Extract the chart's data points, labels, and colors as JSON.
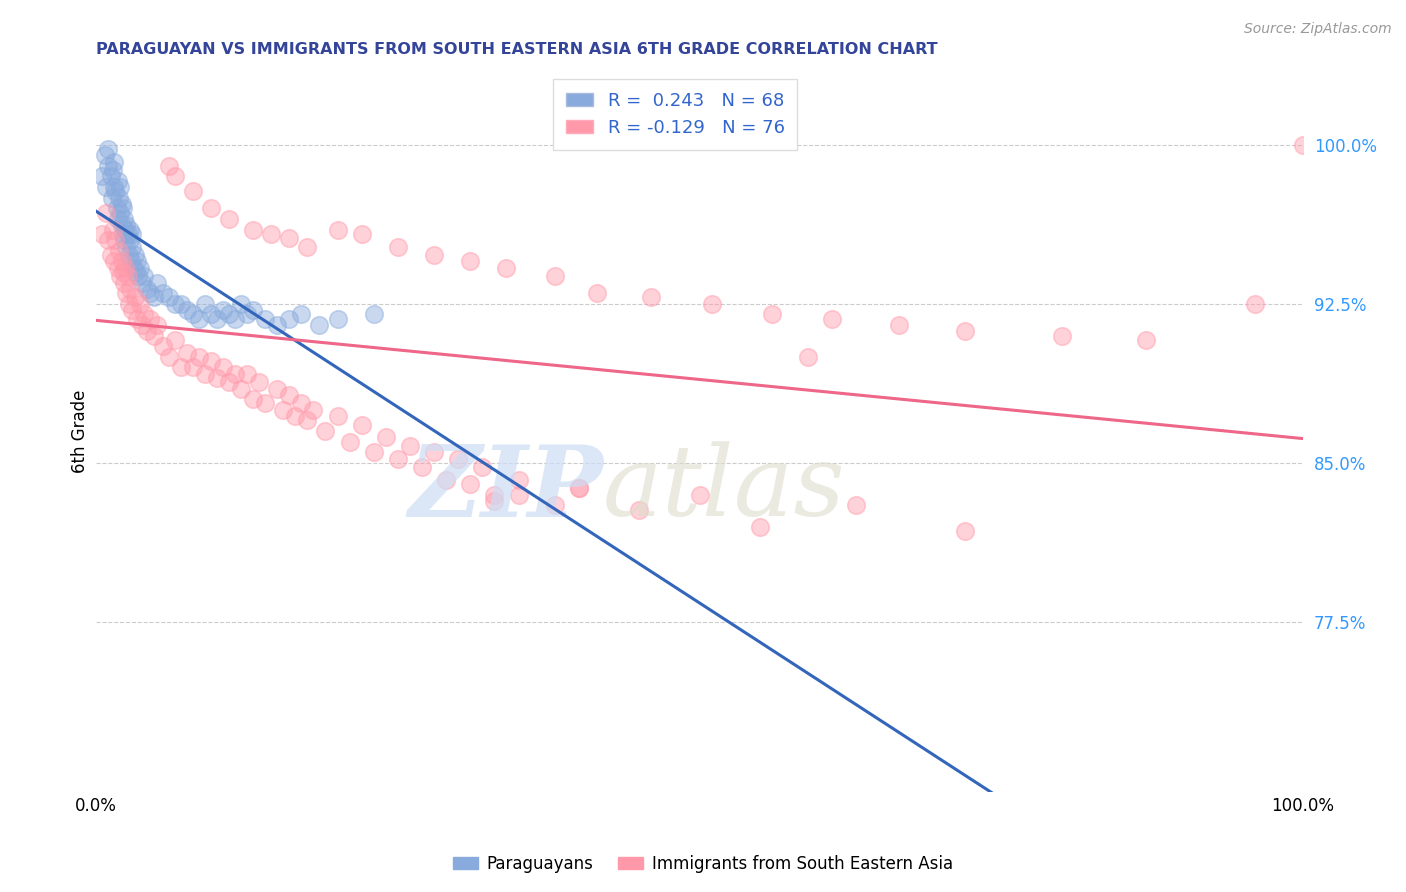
{
  "title": "PARAGUAYAN VS IMMIGRANTS FROM SOUTH EASTERN ASIA 6TH GRADE CORRELATION CHART",
  "source": "Source: ZipAtlas.com",
  "ylabel": "6th Grade",
  "xlim": [
    0.0,
    1.0
  ],
  "ylim": [
    0.695,
    1.035
  ],
  "yticks": [
    0.775,
    0.85,
    0.925,
    1.0
  ],
  "ytick_labels": [
    "77.5%",
    "85.0%",
    "92.5%",
    "100.0%"
  ],
  "blue_r": 0.243,
  "blue_n": 68,
  "pink_r": -0.129,
  "pink_n": 76,
  "legend_label_blue": "Paraguayans",
  "legend_label_pink": "Immigrants from South Eastern Asia",
  "blue_color": "#88AADD",
  "pink_color": "#FF99AA",
  "blue_line_color": "#3366BB",
  "pink_line_color": "#EE6688",
  "blue_points_x": [
    0.005,
    0.007,
    0.008,
    0.01,
    0.01,
    0.012,
    0.013,
    0.014,
    0.015,
    0.015,
    0.016,
    0.017,
    0.018,
    0.018,
    0.019,
    0.02,
    0.02,
    0.021,
    0.021,
    0.022,
    0.022,
    0.023,
    0.023,
    0.024,
    0.025,
    0.025,
    0.026,
    0.027,
    0.028,
    0.028,
    0.029,
    0.03,
    0.03,
    0.031,
    0.032,
    0.033,
    0.034,
    0.035,
    0.036,
    0.038,
    0.04,
    0.042,
    0.045,
    0.048,
    0.05,
    0.055,
    0.06,
    0.065,
    0.07,
    0.075,
    0.08,
    0.085,
    0.09,
    0.095,
    0.1,
    0.105,
    0.11,
    0.115,
    0.12,
    0.125,
    0.13,
    0.14,
    0.15,
    0.16,
    0.17,
    0.185,
    0.2,
    0.23
  ],
  "blue_points_y": [
    0.985,
    0.995,
    0.98,
    0.99,
    0.998,
    0.985,
    0.975,
    0.988,
    0.98,
    0.992,
    0.978,
    0.97,
    0.983,
    0.965,
    0.975,
    0.968,
    0.98,
    0.962,
    0.972,
    0.958,
    0.97,
    0.955,
    0.965,
    0.96,
    0.952,
    0.962,
    0.958,
    0.948,
    0.955,
    0.96,
    0.945,
    0.952,
    0.958,
    0.942,
    0.948,
    0.94,
    0.945,
    0.938,
    0.942,
    0.935,
    0.938,
    0.932,
    0.93,
    0.928,
    0.935,
    0.93,
    0.928,
    0.925,
    0.925,
    0.922,
    0.92,
    0.918,
    0.925,
    0.92,
    0.918,
    0.922,
    0.92,
    0.918,
    0.925,
    0.92,
    0.922,
    0.918,
    0.915,
    0.918,
    0.92,
    0.915,
    0.918,
    0.92
  ],
  "pink_points_x": [
    0.005,
    0.008,
    0.01,
    0.012,
    0.014,
    0.015,
    0.016,
    0.018,
    0.019,
    0.02,
    0.021,
    0.022,
    0.023,
    0.024,
    0.025,
    0.026,
    0.027,
    0.028,
    0.03,
    0.032,
    0.034,
    0.036,
    0.038,
    0.04,
    0.042,
    0.045,
    0.048,
    0.05,
    0.055,
    0.06,
    0.065,
    0.07,
    0.075,
    0.08,
    0.085,
    0.09,
    0.095,
    0.1,
    0.105,
    0.11,
    0.115,
    0.12,
    0.125,
    0.13,
    0.135,
    0.14,
    0.15,
    0.155,
    0.16,
    0.165,
    0.17,
    0.175,
    0.18,
    0.19,
    0.2,
    0.21,
    0.22,
    0.23,
    0.24,
    0.25,
    0.26,
    0.27,
    0.28,
    0.29,
    0.3,
    0.31,
    0.32,
    0.33,
    0.35,
    0.38,
    0.4,
    0.45,
    0.5,
    0.55,
    0.63,
    0.72
  ],
  "pink_points_y": [
    0.958,
    0.968,
    0.955,
    0.948,
    0.96,
    0.945,
    0.955,
    0.942,
    0.95,
    0.938,
    0.945,
    0.94,
    0.935,
    0.942,
    0.93,
    0.938,
    0.925,
    0.932,
    0.922,
    0.928,
    0.918,
    0.925,
    0.915,
    0.92,
    0.912,
    0.918,
    0.91,
    0.915,
    0.905,
    0.9,
    0.908,
    0.895,
    0.902,
    0.895,
    0.9,
    0.892,
    0.898,
    0.89,
    0.895,
    0.888,
    0.892,
    0.885,
    0.892,
    0.88,
    0.888,
    0.878,
    0.885,
    0.875,
    0.882,
    0.872,
    0.878,
    0.87,
    0.875,
    0.865,
    0.872,
    0.86,
    0.868,
    0.855,
    0.862,
    0.852,
    0.858,
    0.848,
    0.855,
    0.842,
    0.852,
    0.84,
    0.848,
    0.835,
    0.842,
    0.83,
    0.838,
    0.828,
    0.835,
    0.82,
    0.83,
    0.818
  ],
  "pink_extra_x": [
    0.06,
    0.065,
    0.08,
    0.095,
    0.11,
    0.13,
    0.145,
    0.16,
    0.175,
    0.2,
    0.22,
    0.25,
    0.28,
    0.31,
    0.34,
    0.38,
    0.415,
    0.46,
    0.51,
    0.56,
    0.61,
    0.665,
    0.72,
    0.8,
    0.87,
    0.96,
    1.0,
    0.4,
    0.35,
    0.33,
    0.59
  ],
  "pink_extra_y": [
    0.99,
    0.985,
    0.978,
    0.97,
    0.965,
    0.96,
    0.958,
    0.956,
    0.952,
    0.96,
    0.958,
    0.952,
    0.948,
    0.945,
    0.942,
    0.938,
    0.93,
    0.928,
    0.925,
    0.92,
    0.918,
    0.915,
    0.912,
    0.91,
    0.908,
    0.925,
    1.0,
    0.838,
    0.835,
    0.832,
    0.9
  ]
}
